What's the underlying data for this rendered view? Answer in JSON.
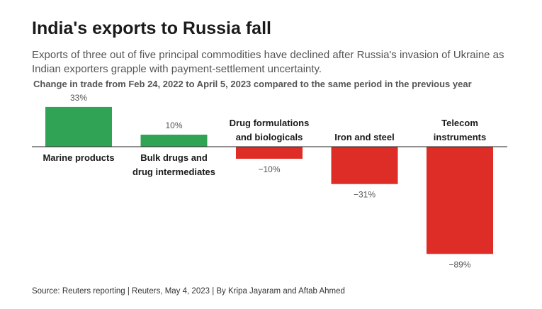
{
  "title": "India's exports to Russia fall",
  "subtitle": "Exports of three out of five principal commodities have declined after Russia's invasion of Ukraine as Indian exporters grapple with payment-settlement uncertainty.",
  "source": "Source: Reuters reporting | Reuters, May 4, 2023 | By Kripa Jayaram and Aftab Ahmed",
  "chart_data": {
    "type": "bar",
    "title": "Change in trade from Feb 24, 2022 to April 5, 2023 compared to the same period in the previous year",
    "categories": [
      [
        "Marine products"
      ],
      [
        "Bulk drugs and",
        "drug intermediates"
      ],
      [
        "Drug formulations",
        "and biologicals"
      ],
      [
        "Iron and steel"
      ],
      [
        "Telecom",
        "instruments"
      ]
    ],
    "values": [
      33,
      10,
      -10,
      -31,
      -89
    ],
    "value_labels": [
      "33%",
      "10%",
      "−10%",
      "−31%",
      "−89%"
    ],
    "colors": {
      "positive": "#31a354",
      "negative": "#de2d26"
    },
    "ylim": [
      -89,
      33
    ]
  }
}
